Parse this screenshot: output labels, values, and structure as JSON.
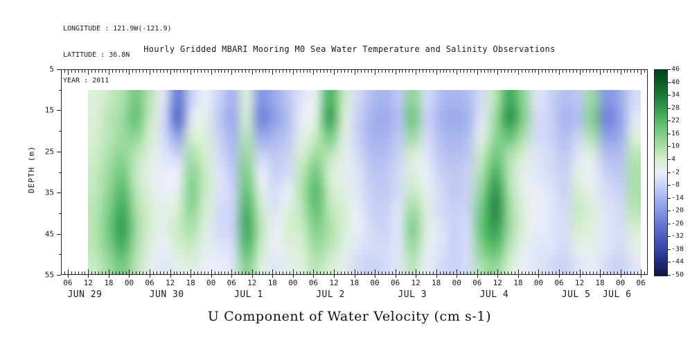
{
  "header": {
    "line1": "LONGITUDE : 121.9W(-121.9)",
    "line2": "LATITUDE : 36.8N",
    "line3": "YEAR : 2011"
  },
  "title": "Hourly Gridded MBARI Mooring M0 Sea Water Temperature and Salinity Observations",
  "footer_label": "U Component of Water Velocity (cm s-1)",
  "axes": {
    "ylabel": "DEPTH (m)",
    "y_ticks": [
      {
        "v": 5,
        "label": "5"
      },
      {
        "v": 15,
        "label": "15"
      },
      {
        "v": 25,
        "label": "25"
      },
      {
        "v": 35,
        "label": "35"
      },
      {
        "v": 45,
        "label": "45"
      },
      {
        "v": 55,
        "label": "55"
      }
    ],
    "hour_labels": [
      "06",
      "12",
      "18",
      "00",
      "06",
      "12",
      "18",
      "00",
      "06",
      "12",
      "18",
      "00",
      "06",
      "12",
      "18",
      "00",
      "06",
      "12",
      "18",
      "00",
      "06",
      "12",
      "18",
      "00",
      "06",
      "12",
      "18",
      "00",
      "06"
    ],
    "hour_label_start": 6,
    "hour_label_step": 6,
    "date_labels": [
      {
        "label": "JUN 29",
        "t": 11
      },
      {
        "label": "JUN 30",
        "t": 35
      },
      {
        "label": "JUL 1",
        "t": 59
      },
      {
        "label": "JUL 2",
        "t": 83
      },
      {
        "label": "JUL 3",
        "t": 107
      },
      {
        "label": "JUL 4",
        "t": 131
      },
      {
        "label": "JUL 5",
        "t": 155
      },
      {
        "label": "JUL 6",
        "t": 167
      }
    ]
  },
  "colorbar": {
    "ticks": [
      {
        "v": 46,
        "label": "46"
      },
      {
        "v": 40,
        "label": "40"
      },
      {
        "v": 34,
        "label": "34"
      },
      {
        "v": 28,
        "label": "28"
      },
      {
        "v": 22,
        "label": "22"
      },
      {
        "v": 16,
        "label": "16"
      },
      {
        "v": 10,
        "label": "10"
      },
      {
        "v": 4,
        "label": "4"
      },
      {
        "v": -2,
        "label": "-2"
      },
      {
        "v": -8,
        "label": "-8"
      },
      {
        "v": -14,
        "label": "-14"
      },
      {
        "v": -20,
        "label": "-20"
      },
      {
        "v": -26,
        "label": "-26"
      },
      {
        "v": -32,
        "label": "-32"
      },
      {
        "v": -38,
        "label": "-38"
      },
      {
        "v": -44,
        "label": "-44"
      },
      {
        "v": -50,
        "label": "-50"
      }
    ],
    "stops": [
      {
        "v": 46,
        "c": "#00441b"
      },
      {
        "v": 40,
        "c": "#0b5f27"
      },
      {
        "v": 34,
        "c": "#1b7d39"
      },
      {
        "v": 28,
        "c": "#339e4f"
      },
      {
        "v": 22,
        "c": "#55bb69"
      },
      {
        "v": 16,
        "c": "#80cf8a"
      },
      {
        "v": 10,
        "c": "#abe0ab"
      },
      {
        "v": 4,
        "c": "#d6efd0"
      },
      {
        "v": -2,
        "c": "#ebeef9"
      },
      {
        "v": -8,
        "c": "#c9d2f4"
      },
      {
        "v": -14,
        "c": "#a6b4ee"
      },
      {
        "v": -20,
        "c": "#8497e3"
      },
      {
        "v": -26,
        "c": "#6579d3"
      },
      {
        "v": -32,
        "c": "#4c5dc0"
      },
      {
        "v": -38,
        "c": "#3443a4"
      },
      {
        "v": -44,
        "c": "#202c7a"
      },
      {
        "v": -50,
        "c": "#121843"
      }
    ]
  },
  "chart_data": {
    "type": "heatmap",
    "title": "Hourly Gridded MBARI Mooring M0 Sea Water Temperature and Salinity Observations",
    "variable": "U Component of Water Velocity",
    "units": "cm s-1",
    "year": "2011",
    "x_axis": {
      "start": "JUN 29 12:00",
      "end": "JUL 6 06:00",
      "step_hours": 4,
      "hour_tick_labels": [
        "06",
        "12",
        "18",
        "00"
      ],
      "dates": [
        "JUN 29",
        "JUN 30",
        "JUL 1",
        "JUL 2",
        "JUL 3",
        "JUL 4",
        "JUL 5",
        "JUL 6"
      ]
    },
    "y_axis": {
      "label": "DEPTH (m)",
      "range_m": [
        5,
        55
      ],
      "data_depths_m": [
        10,
        15,
        20,
        25,
        30,
        35,
        40,
        45,
        50,
        55
      ]
    },
    "value_range": [
      -50,
      46
    ],
    "values_by_depth": [
      [
        2,
        6,
        10,
        18,
        8,
        -4,
        -26,
        -8,
        -2,
        -8,
        -14,
        2,
        -20,
        -16,
        -10,
        -4,
        0,
        24,
        6,
        -6,
        -12,
        -14,
        -10,
        14,
        -6,
        -12,
        -14,
        -12,
        -6,
        8,
        26,
        14,
        -4,
        -8,
        -12,
        -10,
        12,
        -20,
        -16,
        -6
      ],
      [
        3,
        8,
        12,
        20,
        6,
        -6,
        -30,
        -4,
        0,
        -10,
        -16,
        4,
        -24,
        -18,
        -12,
        -2,
        2,
        28,
        4,
        -8,
        -14,
        -16,
        -12,
        18,
        -8,
        -14,
        -16,
        -14,
        -4,
        12,
        30,
        16,
        -6,
        -8,
        -14,
        -12,
        16,
        -24,
        -18,
        -4
      ],
      [
        4,
        8,
        12,
        14,
        4,
        -6,
        -18,
        4,
        2,
        -8,
        -14,
        8,
        -16,
        -14,
        -10,
        0,
        6,
        18,
        2,
        -8,
        -14,
        -14,
        -10,
        12,
        -6,
        -12,
        -14,
        -12,
        0,
        14,
        20,
        10,
        -6,
        -8,
        -12,
        -8,
        10,
        -18,
        -16,
        2
      ],
      [
        5,
        10,
        14,
        8,
        2,
        -4,
        -8,
        10,
        4,
        -6,
        -12,
        12,
        -8,
        -10,
        -8,
        4,
        12,
        8,
        0,
        -6,
        -12,
        -12,
        -8,
        4,
        -4,
        -10,
        -12,
        -10,
        6,
        18,
        10,
        4,
        -4,
        -6,
        -10,
        -4,
        2,
        -12,
        -12,
        8
      ],
      [
        6,
        12,
        18,
        6,
        0,
        -2,
        -2,
        14,
        6,
        -4,
        -10,
        16,
        -2,
        -8,
        -6,
        8,
        18,
        4,
        0,
        -4,
        -10,
        -10,
        -6,
        2,
        -2,
        -8,
        -10,
        -8,
        10,
        24,
        8,
        0,
        -4,
        -6,
        -8,
        0,
        -2,
        -8,
        -10,
        10
      ],
      [
        7,
        14,
        22,
        8,
        2,
        -2,
        0,
        16,
        6,
        -4,
        -8,
        20,
        2,
        -6,
        -2,
        10,
        22,
        6,
        2,
        -4,
        -8,
        -10,
        -6,
        6,
        0,
        -6,
        -10,
        -8,
        14,
        30,
        10,
        0,
        -2,
        -4,
        -8,
        4,
        0,
        -6,
        -8,
        10
      ],
      [
        8,
        16,
        26,
        10,
        4,
        0,
        4,
        14,
        4,
        -6,
        -8,
        24,
        6,
        -4,
        2,
        8,
        20,
        8,
        4,
        -2,
        -8,
        -8,
        -4,
        12,
        2,
        -6,
        -8,
        -8,
        18,
        32,
        12,
        2,
        -2,
        -4,
        -6,
        6,
        2,
        -4,
        -6,
        8
      ],
      [
        8,
        18,
        28,
        12,
        4,
        0,
        6,
        10,
        2,
        -6,
        -8,
        26,
        8,
        -2,
        4,
        6,
        16,
        10,
        4,
        -2,
        -6,
        -8,
        -4,
        16,
        2,
        -4,
        -8,
        -6,
        20,
        28,
        12,
        2,
        -2,
        -4,
        -6,
        4,
        2,
        -4,
        -6,
        4
      ],
      [
        8,
        16,
        24,
        10,
        2,
        -2,
        4,
        6,
        0,
        -4,
        -6,
        22,
        6,
        -2,
        2,
        4,
        12,
        8,
        2,
        -4,
        -6,
        -6,
        -4,
        12,
        0,
        -4,
        -8,
        -6,
        16,
        22,
        8,
        0,
        -4,
        -4,
        -6,
        0,
        0,
        -4,
        -6,
        0
      ],
      [
        6,
        12,
        18,
        8,
        0,
        -4,
        0,
        2,
        -2,
        -2,
        -4,
        16,
        2,
        -4,
        0,
        2,
        8,
        4,
        0,
        -6,
        -8,
        -6,
        -4,
        8,
        -2,
        -6,
        -8,
        -6,
        10,
        14,
        4,
        -2,
        -4,
        -6,
        -8,
        -4,
        -2,
        -6,
        -8,
        -4
      ]
    ]
  }
}
